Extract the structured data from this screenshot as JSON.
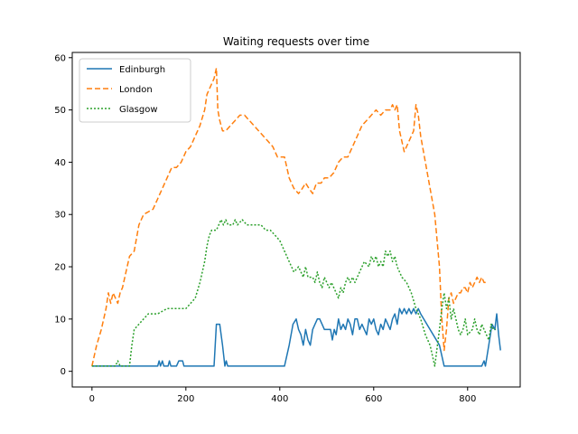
{
  "chart_data": {
    "type": "line",
    "title": "Waiting requests over time",
    "xlabel": "",
    "ylabel": "",
    "xlim": [
      -42,
      912
    ],
    "ylim": [
      -3,
      61
    ],
    "xticks": [
      0,
      200,
      400,
      600,
      800
    ],
    "yticks": [
      0,
      10,
      20,
      30,
      40,
      50,
      60
    ],
    "grid": false,
    "legend": "top-left",
    "series": [
      {
        "name": "Edinburgh",
        "color": "#1f77b4",
        "dash": "solid",
        "points": [
          [
            0,
            1
          ],
          [
            140,
            1
          ],
          [
            143,
            2
          ],
          [
            146,
            1
          ],
          [
            150,
            2
          ],
          [
            153,
            1
          ],
          [
            162,
            1
          ],
          [
            165,
            2
          ],
          [
            168,
            1
          ],
          [
            180,
            1
          ],
          [
            185,
            2
          ],
          [
            193,
            2
          ],
          [
            196,
            1
          ],
          [
            260,
            1
          ],
          [
            265,
            9
          ],
          [
            272,
            9
          ],
          [
            278,
            5
          ],
          [
            283,
            1
          ],
          [
            286,
            2
          ],
          [
            289,
            1
          ],
          [
            410,
            1
          ],
          [
            420,
            5
          ],
          [
            428,
            9
          ],
          [
            435,
            10
          ],
          [
            440,
            8
          ],
          [
            445,
            7
          ],
          [
            450,
            5
          ],
          [
            455,
            8
          ],
          [
            460,
            6
          ],
          [
            465,
            5
          ],
          [
            470,
            8
          ],
          [
            475,
            9
          ],
          [
            480,
            10
          ],
          [
            485,
            10
          ],
          [
            490,
            9
          ],
          [
            495,
            8
          ],
          [
            500,
            8
          ],
          [
            508,
            8
          ],
          [
            512,
            6
          ],
          [
            516,
            8
          ],
          [
            520,
            7
          ],
          [
            525,
            10
          ],
          [
            530,
            8
          ],
          [
            535,
            9
          ],
          [
            540,
            8
          ],
          [
            545,
            10
          ],
          [
            550,
            9
          ],
          [
            555,
            7
          ],
          [
            560,
            10
          ],
          [
            565,
            10
          ],
          [
            570,
            8
          ],
          [
            575,
            9
          ],
          [
            580,
            8
          ],
          [
            585,
            7
          ],
          [
            590,
            10
          ],
          [
            595,
            9
          ],
          [
            600,
            10
          ],
          [
            605,
            8
          ],
          [
            610,
            7
          ],
          [
            615,
            9
          ],
          [
            620,
            8
          ],
          [
            625,
            10
          ],
          [
            630,
            9
          ],
          [
            635,
            8
          ],
          [
            640,
            10
          ],
          [
            645,
            11
          ],
          [
            650,
            9
          ],
          [
            655,
            12
          ],
          [
            660,
            11
          ],
          [
            665,
            12
          ],
          [
            670,
            11
          ],
          [
            675,
            12
          ],
          [
            680,
            11
          ],
          [
            685,
            12
          ],
          [
            690,
            11
          ],
          [
            695,
            12
          ],
          [
            700,
            11
          ],
          [
            740,
            5
          ],
          [
            750,
            1
          ],
          [
            830,
            1
          ],
          [
            835,
            2
          ],
          [
            838,
            1
          ],
          [
            845,
            5
          ],
          [
            852,
            9
          ],
          [
            858,
            8
          ],
          [
            862,
            11
          ],
          [
            866,
            7
          ],
          [
            870,
            4
          ]
        ]
      },
      {
        "name": "London",
        "color": "#ff7f0e",
        "dash": "6,3",
        "points": [
          [
            0,
            1
          ],
          [
            10,
            5
          ],
          [
            20,
            8
          ],
          [
            30,
            12
          ],
          [
            35,
            15
          ],
          [
            40,
            13
          ],
          [
            45,
            15
          ],
          [
            50,
            14
          ],
          [
            55,
            13
          ],
          [
            60,
            15
          ],
          [
            65,
            16
          ],
          [
            70,
            18
          ],
          [
            80,
            22
          ],
          [
            90,
            23
          ],
          [
            100,
            28
          ],
          [
            110,
            30
          ],
          [
            130,
            31
          ],
          [
            140,
            33
          ],
          [
            150,
            35
          ],
          [
            160,
            37
          ],
          [
            170,
            39
          ],
          [
            180,
            39
          ],
          [
            190,
            40
          ],
          [
            200,
            42
          ],
          [
            210,
            43
          ],
          [
            220,
            45
          ],
          [
            230,
            47
          ],
          [
            240,
            50
          ],
          [
            245,
            53
          ],
          [
            250,
            54
          ],
          [
            255,
            55
          ],
          [
            260,
            56
          ],
          [
            265,
            58
          ],
          [
            268,
            50
          ],
          [
            272,
            48
          ],
          [
            278,
            46
          ],
          [
            285,
            46
          ],
          [
            295,
            47
          ],
          [
            305,
            48
          ],
          [
            315,
            49
          ],
          [
            325,
            49
          ],
          [
            335,
            48
          ],
          [
            345,
            47
          ],
          [
            355,
            46
          ],
          [
            365,
            45
          ],
          [
            375,
            44
          ],
          [
            385,
            43
          ],
          [
            395,
            41
          ],
          [
            410,
            41
          ],
          [
            420,
            37
          ],
          [
            430,
            35
          ],
          [
            440,
            34
          ],
          [
            448,
            35
          ],
          [
            455,
            36
          ],
          [
            462,
            35
          ],
          [
            470,
            34
          ],
          [
            478,
            36
          ],
          [
            488,
            36
          ],
          [
            495,
            37
          ],
          [
            505,
            37
          ],
          [
            515,
            38
          ],
          [
            525,
            40
          ],
          [
            535,
            41
          ],
          [
            545,
            41
          ],
          [
            555,
            43
          ],
          [
            565,
            45
          ],
          [
            575,
            47
          ],
          [
            585,
            48
          ],
          [
            595,
            49
          ],
          [
            605,
            50
          ],
          [
            615,
            49
          ],
          [
            625,
            50
          ],
          [
            635,
            50
          ],
          [
            640,
            51
          ],
          [
            645,
            50
          ],
          [
            650,
            51
          ],
          [
            655,
            46
          ],
          [
            660,
            44
          ],
          [
            665,
            42
          ],
          [
            670,
            43
          ],
          [
            675,
            44
          ],
          [
            680,
            45
          ],
          [
            685,
            46
          ],
          [
            690,
            51
          ],
          [
            695,
            49
          ],
          [
            700,
            45
          ],
          [
            710,
            40
          ],
          [
            720,
            35
          ],
          [
            730,
            30
          ],
          [
            740,
            20
          ],
          [
            745,
            10
          ],
          [
            750,
            4
          ],
          [
            755,
            8
          ],
          [
            760,
            14
          ],
          [
            765,
            15
          ],
          [
            770,
            13
          ],
          [
            775,
            14
          ],
          [
            780,
            15
          ],
          [
            785,
            15
          ],
          [
            790,
            16
          ],
          [
            795,
            16
          ],
          [
            800,
            15
          ],
          [
            805,
            17
          ],
          [
            810,
            16
          ],
          [
            815,
            17
          ],
          [
            820,
            18
          ],
          [
            825,
            17
          ],
          [
            830,
            18
          ],
          [
            835,
            17
          ],
          [
            840,
            17
          ]
        ]
      },
      {
        "name": "Glasgow",
        "color": "#2ca02c",
        "dash": "2,2",
        "points": [
          [
            0,
            1
          ],
          [
            50,
            1
          ],
          [
            55,
            2
          ],
          [
            60,
            1
          ],
          [
            80,
            1
          ],
          [
            85,
            5
          ],
          [
            90,
            8
          ],
          [
            100,
            9
          ],
          [
            110,
            10
          ],
          [
            120,
            11
          ],
          [
            140,
            11
          ],
          [
            160,
            12
          ],
          [
            180,
            12
          ],
          [
            200,
            12
          ],
          [
            210,
            13
          ],
          [
            220,
            14
          ],
          [
            230,
            17
          ],
          [
            240,
            21
          ],
          [
            245,
            24
          ],
          [
            250,
            26
          ],
          [
            255,
            27
          ],
          [
            265,
            27
          ],
          [
            270,
            28
          ],
          [
            275,
            29
          ],
          [
            280,
            28
          ],
          [
            285,
            29
          ],
          [
            290,
            28
          ],
          [
            300,
            28
          ],
          [
            305,
            29
          ],
          [
            310,
            28
          ],
          [
            320,
            29
          ],
          [
            330,
            28
          ],
          [
            340,
            28
          ],
          [
            350,
            28
          ],
          [
            360,
            28
          ],
          [
            370,
            27
          ],
          [
            380,
            27
          ],
          [
            390,
            26
          ],
          [
            400,
            25
          ],
          [
            410,
            23
          ],
          [
            420,
            21
          ],
          [
            430,
            19
          ],
          [
            440,
            20
          ],
          [
            450,
            18
          ],
          [
            455,
            20
          ],
          [
            460,
            18
          ],
          [
            470,
            18
          ],
          [
            475,
            17
          ],
          [
            480,
            19
          ],
          [
            485,
            17
          ],
          [
            490,
            16
          ],
          [
            495,
            18
          ],
          [
            500,
            17
          ],
          [
            505,
            16
          ],
          [
            510,
            17
          ],
          [
            520,
            15
          ],
          [
            525,
            14
          ],
          [
            530,
            16
          ],
          [
            535,
            15
          ],
          [
            540,
            17
          ],
          [
            545,
            18
          ],
          [
            550,
            17
          ],
          [
            555,
            18
          ],
          [
            560,
            17
          ],
          [
            570,
            19
          ],
          [
            580,
            21
          ],
          [
            590,
            20
          ],
          [
            595,
            22
          ],
          [
            600,
            21
          ],
          [
            605,
            22
          ],
          [
            610,
            20
          ],
          [
            615,
            21
          ],
          [
            620,
            20
          ],
          [
            625,
            23
          ],
          [
            630,
            22
          ],
          [
            635,
            23
          ],
          [
            640,
            21
          ],
          [
            645,
            22
          ],
          [
            650,
            20
          ],
          [
            655,
            19
          ],
          [
            660,
            18
          ],
          [
            670,
            17
          ],
          [
            680,
            15
          ],
          [
            690,
            12
          ],
          [
            700,
            10
          ],
          [
            710,
            7
          ],
          [
            720,
            5
          ],
          [
            730,
            1
          ],
          [
            740,
            8
          ],
          [
            745,
            12
          ],
          [
            750,
            15
          ],
          [
            755,
            12
          ],
          [
            760,
            14
          ],
          [
            765,
            10
          ],
          [
            770,
            12
          ],
          [
            775,
            10
          ],
          [
            780,
            8
          ],
          [
            785,
            7
          ],
          [
            790,
            8
          ],
          [
            795,
            10
          ],
          [
            800,
            7
          ],
          [
            810,
            8
          ],
          [
            815,
            10
          ],
          [
            820,
            8
          ],
          [
            825,
            7
          ],
          [
            830,
            9
          ],
          [
            835,
            8
          ],
          [
            840,
            7
          ],
          [
            845,
            6
          ],
          [
            850,
            9
          ],
          [
            855,
            8
          ],
          [
            860,
            8
          ]
        ]
      }
    ]
  }
}
